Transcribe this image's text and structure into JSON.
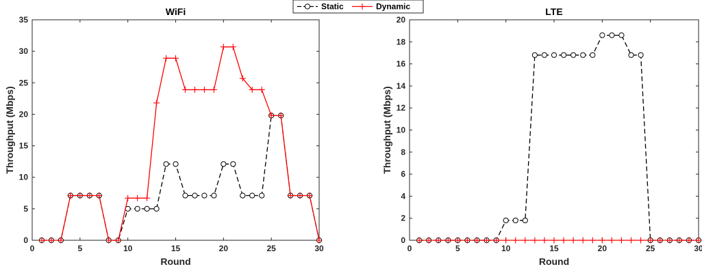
{
  "legend": {
    "placement": "top-center",
    "entries": [
      {
        "label": "Static",
        "color": "#000000",
        "marker": "circle",
        "line": "dashed"
      },
      {
        "label": "Dynamic",
        "color": "#ff0000",
        "marker": "plus",
        "line": "solid"
      }
    ]
  },
  "chart_data": [
    {
      "type": "line",
      "title": "WiFi",
      "xlabel": "Round",
      "ylabel": "Throughput (Mbps)",
      "xlim": [
        0,
        30
      ],
      "ylim": [
        0,
        35
      ],
      "xticks": [
        0,
        5,
        10,
        15,
        20,
        25,
        30
      ],
      "yticks": [
        0,
        5,
        10,
        15,
        20,
        25,
        30,
        35
      ],
      "grid": false,
      "x": [
        1,
        2,
        3,
        4,
        5,
        6,
        7,
        8,
        9,
        10,
        11,
        12,
        13,
        14,
        15,
        16,
        17,
        18,
        19,
        20,
        21,
        22,
        23,
        24,
        25,
        26,
        27,
        28,
        29,
        30
      ],
      "series": [
        {
          "name": "Static",
          "color": "#000000",
          "values": [
            0,
            0,
            0,
            7.1,
            7.1,
            7.1,
            7.1,
            0,
            0,
            5,
            5,
            5,
            5,
            12.1,
            12.1,
            7.1,
            7.1,
            7.1,
            7.1,
            12.1,
            12.1,
            7.1,
            7.1,
            7.1,
            19.8,
            19.8,
            7.1,
            7.1,
            7.1,
            0
          ]
        },
        {
          "name": "Dynamic",
          "color": "#ff0000",
          "values": [
            0,
            0,
            0,
            7.1,
            7.1,
            7.1,
            7.1,
            0,
            0,
            6.7,
            6.7,
            6.7,
            21.8,
            28.9,
            28.9,
            23.9,
            23.9,
            23.9,
            23.9,
            30.7,
            30.7,
            25.7,
            23.9,
            23.9,
            19.8,
            19.8,
            7.1,
            7.1,
            7.1,
            0
          ]
        }
      ]
    },
    {
      "type": "line",
      "title": "LTE",
      "xlabel": "Round",
      "ylabel": "Throughput (Mbps)",
      "xlim": [
        0,
        30
      ],
      "ylim": [
        0,
        20
      ],
      "xticks": [
        0,
        5,
        10,
        15,
        20,
        25,
        30
      ],
      "yticks": [
        0,
        2,
        4,
        6,
        8,
        10,
        12,
        14,
        16,
        18,
        20
      ],
      "grid": false,
      "x": [
        1,
        2,
        3,
        4,
        5,
        6,
        7,
        8,
        9,
        10,
        11,
        12,
        13,
        14,
        15,
        16,
        17,
        18,
        19,
        20,
        21,
        22,
        23,
        24,
        25,
        26,
        27,
        28,
        29,
        30
      ],
      "series": [
        {
          "name": "Static",
          "color": "#000000",
          "values": [
            0,
            0,
            0,
            0,
            0,
            0,
            0,
            0,
            0,
            1.8,
            1.8,
            1.8,
            16.8,
            16.8,
            16.8,
            16.8,
            16.8,
            16.8,
            16.8,
            18.6,
            18.6,
            18.6,
            16.8,
            16.8,
            0,
            0,
            0,
            0,
            0,
            0
          ]
        },
        {
          "name": "Dynamic",
          "color": "#ff0000",
          "values": [
            0,
            0,
            0,
            0,
            0,
            0,
            0,
            0,
            0,
            0,
            0,
            0,
            0,
            0,
            0,
            0,
            0,
            0,
            0,
            0,
            0,
            0,
            0,
            0,
            0,
            0,
            0,
            0,
            0,
            0
          ]
        }
      ]
    }
  ]
}
